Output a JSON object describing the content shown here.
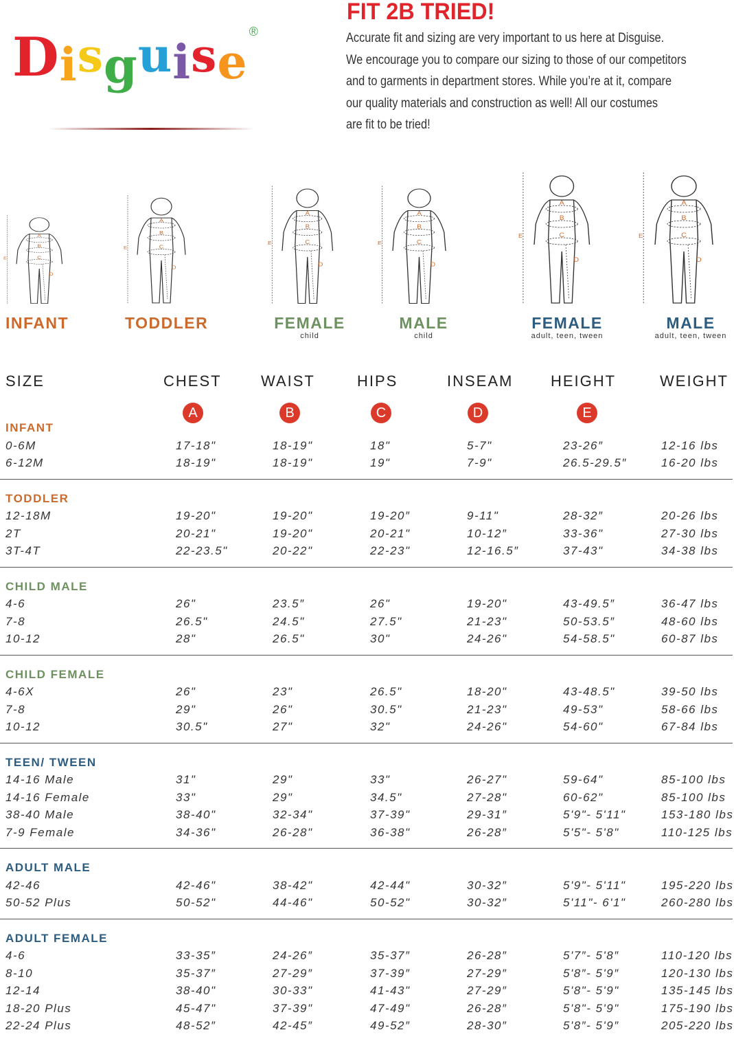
{
  "brand": {
    "logo_text": "Disguise",
    "registered": "®",
    "logo_colors": [
      "#e3232c",
      "#f7a51c",
      "#f4c919",
      "#3fae49",
      "#27a0d8",
      "#7b59a6",
      "#e3232c",
      "#f7941d"
    ]
  },
  "header": {
    "title": "FIT 2B TRIED!",
    "intro_lines": [
      "Accurate fit and sizing are very important to us here at Disguise.",
      "We encourage you to compare our sizing to those of our competitors",
      "and to garments in department stores. While you’re at it, compare",
      "our quality materials and construction as well! All our costumes",
      "are fit to be tried!"
    ]
  },
  "figures": [
    {
      "label": "INFANT",
      "sub": "",
      "color": "orange"
    },
    {
      "label": "TODDLER",
      "sub": "",
      "color": "orange"
    },
    {
      "label": "FEMALE",
      "sub": "child",
      "color": "green"
    },
    {
      "label": "MALE",
      "sub": "child",
      "color": "green"
    },
    {
      "label": "FEMALE",
      "sub": "adult, teen, tween",
      "color": "blue"
    },
    {
      "label": "MALE",
      "sub": "adult, teen, tween",
      "color": "blue"
    }
  ],
  "figure_marks": {
    "a": "A",
    "b": "B",
    "c": "C",
    "d": "D",
    "e": "E"
  },
  "colors": {
    "infant_toddler": "#cc6a2c",
    "child": "#6e9160",
    "adult": "#2c5d80",
    "badge": "#db3a2b",
    "title": "#e0242b"
  },
  "table": {
    "headers": [
      "SIZE",
      "CHEST",
      "WAIST",
      "HIPS",
      "INSEAM",
      "HEIGHT",
      "WEIGHT"
    ],
    "badges": [
      "A",
      "B",
      "C",
      "D",
      "E"
    ],
    "sections": [
      {
        "label": "INFANT",
        "color": "orange",
        "rows": [
          [
            "0-6M",
            "17-18\"",
            "18-19\"",
            "18\"",
            "5-7\"",
            "23-26″",
            "12-16 lbs"
          ],
          [
            "6-12M",
            "18-19\"",
            "18-19\"",
            "19\"",
            "7-9\"",
            "26.5-29.5″",
            "16-20 lbs"
          ]
        ]
      },
      {
        "label": "TODDLER",
        "color": "orange",
        "rows": [
          [
            "12-18M",
            "19-20\"",
            "19-20\"",
            "19-20″",
            "9-11\"",
            "28-32″",
            "20-26 lbs"
          ],
          [
            "2T",
            "20-21\"",
            "19-20\"",
            "20-21\"",
            "10-12″",
            "33-36\"",
            "27-30 lbs"
          ],
          [
            "3T-4T",
            "22-23.5\"",
            "20-22\"",
            "22-23\"",
            "12-16.5″",
            "37-43\"",
            "34-38 lbs"
          ]
        ]
      },
      {
        "label": "CHILD MALE",
        "color": "green",
        "rows": [
          [
            "4-6",
            "26\"",
            "23.5″",
            "26\"",
            "19-20\"",
            "43-49.5″",
            "36-47 lbs"
          ],
          [
            "7-8",
            "26.5\"",
            "24.5\"",
            "27.5\"",
            "21-23\"",
            "50-53.5″",
            "48-60 lbs"
          ],
          [
            "10-12",
            "28\"",
            "26.5\"",
            "30\"",
            "24-26\"",
            "54-58.5\"",
            "60-87 lbs"
          ]
        ]
      },
      {
        "label": "CHILD FEMALE",
        "color": "green",
        "rows": [
          [
            "4-6X",
            "26\"",
            "23\"",
            "26.5\"",
            "18-20\"",
            "43-48.5\"",
            "39-50 lbs"
          ],
          [
            "7-8",
            "29\"",
            "26\"",
            "30.5\"",
            "21-23\"",
            "49-53\"",
            "58-66 lbs"
          ],
          [
            "10-12",
            "30.5\"",
            "27\"",
            "32\"",
            "24-26\"",
            "54-60\"",
            "67-84 lbs"
          ]
        ]
      },
      {
        "label": "TEEN/ TWEEN",
        "color": "blue",
        "rows": [
          [
            "14-16 Male",
            "31\"",
            "29\"",
            "33\"",
            "26-27\"",
            "59-64\"",
            "85-100 lbs"
          ],
          [
            "14-16 Female",
            "33\"",
            "29\"",
            "34.5\"",
            "27-28\"",
            "60-62\"",
            "85-100 lbs"
          ],
          [
            "38-40 Male",
            "38-40\"",
            "32-34\"",
            "37-39\"",
            "29-31″",
            "5'9\"- 5'11\"",
            "153-180 lbs"
          ],
          [
            "7-9 Female",
            "34-36\"",
            "26-28\"",
            "36-38\"",
            "26-28″",
            "5'5\"- 5'8\"",
            "110-125 lbs"
          ]
        ]
      },
      {
        "label": "ADULT MALE",
        "color": "blue",
        "rows": [
          [
            "42-46",
            "42-46\"",
            "38-42\"",
            "42-44\"",
            "30-32″",
            "5'9\"- 5'11\"",
            "195-220 lbs"
          ],
          [
            "50-52 Plus",
            "50-52\"",
            "44-46\"",
            "50-52\"",
            "30-32″",
            "5'11\"- 6'1\"",
            "260-280 lbs"
          ]
        ]
      },
      {
        "label": "ADULT FEMALE",
        "color": "blue",
        "rows": [
          [
            "4-6",
            "33-35″",
            "24-26″",
            "35-37″",
            "26-28″",
            "5'7″- 5'8″",
            "110-120 lbs"
          ],
          [
            "8-10",
            "35-37″",
            "27-29″",
            "37-39″",
            "27-29″",
            "5'8″- 5'9″",
            "120-130 lbs"
          ],
          [
            "12-14",
            "38-40\"",
            "30-33\"",
            "41-43\"",
            "27-29″",
            "5'8\"- 5'9\"",
            "135-145 lbs"
          ],
          [
            "18-20 Plus",
            "45-47\"",
            "37-39\"",
            "47-49\"",
            "26-28″",
            "5'8\"- 5'9\"",
            "175-190 lbs"
          ],
          [
            "22-24 Plus",
            "48-52″",
            "42-45″",
            "49-52″",
            "28-30″",
            "5'8″- 5'9″",
            "205-220 lbs"
          ]
        ]
      }
    ]
  }
}
